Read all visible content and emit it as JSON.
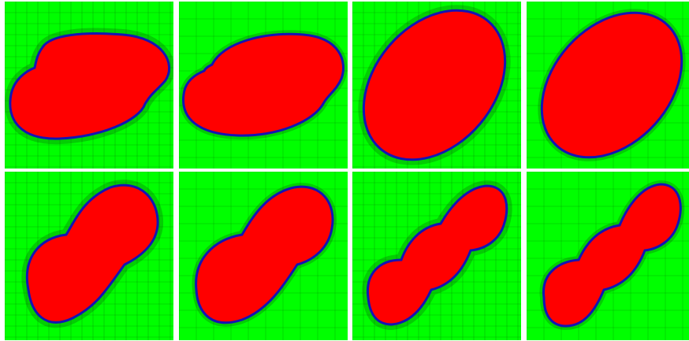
{
  "figure": {
    "panels": [
      {
        "row": 1,
        "col": 1,
        "shape": "peanut-two-lobes",
        "view": "adaptive-mesh-dense"
      },
      {
        "row": 1,
        "col": 2,
        "shape": "peanut-two-lobes",
        "view": "adaptive-mesh-coarse"
      },
      {
        "row": 1,
        "col": 3,
        "shape": "ellipse",
        "view": "adaptive-mesh-dense"
      },
      {
        "row": 1,
        "col": 4,
        "shape": "ellipse",
        "view": "adaptive-mesh-coarse"
      },
      {
        "row": 2,
        "col": 1,
        "shape": "peanut-two-lobes",
        "view": "adaptive-mesh-dense"
      },
      {
        "row": 2,
        "col": 2,
        "shape": "peanut-two-lobes",
        "view": "adaptive-mesh-coarse"
      },
      {
        "row": 2,
        "col": 3,
        "shape": "chain-three-lobes",
        "view": "adaptive-mesh-dense"
      },
      {
        "row": 2,
        "col": 4,
        "shape": "chain-three-lobes",
        "view": "adaptive-mesh-coarse"
      }
    ],
    "colors": {
      "background_region": "#00ff00",
      "interior_region": "#ff0000",
      "interface_line": "#1414b4",
      "mesh_line": "#0b3d0b",
      "panel_gap": "#ffffff"
    }
  }
}
